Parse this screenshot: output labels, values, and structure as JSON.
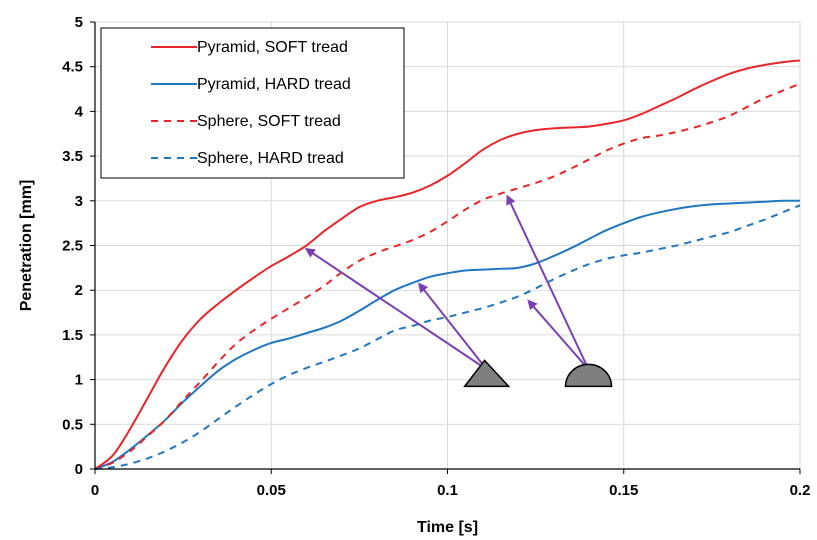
{
  "chart_data": {
    "type": "line",
    "title": "",
    "xlabel": "Time [s]",
    "ylabel": "Penetration [mm]",
    "xlim": [
      0,
      0.2
    ],
    "ylim": [
      0,
      5
    ],
    "xticks": [
      "0",
      "0.05",
      "0.1",
      "0.15",
      "0.2"
    ],
    "yticks": [
      "0",
      "0.5",
      "1",
      "1.5",
      "2",
      "2.5",
      "3",
      "3.5",
      "4",
      "4.5",
      "5"
    ],
    "grid": true,
    "legend_position": "top-left",
    "series": [
      {
        "name": "Pyramid, SOFT tread",
        "color": "#e8262a",
        "dash": "solid",
        "x": [
          0,
          0.005,
          0.01,
          0.015,
          0.02,
          0.025,
          0.03,
          0.035,
          0.04,
          0.045,
          0.05,
          0.055,
          0.06,
          0.065,
          0.07,
          0.075,
          0.08,
          0.085,
          0.09,
          0.095,
          0.1,
          0.105,
          0.11,
          0.115,
          0.12,
          0.125,
          0.13,
          0.135,
          0.14,
          0.145,
          0.15,
          0.155,
          0.16,
          0.165,
          0.17,
          0.175,
          0.18,
          0.185,
          0.19,
          0.195,
          0.2
        ],
        "y": [
          0,
          0.15,
          0.45,
          0.8,
          1.15,
          1.45,
          1.68,
          1.85,
          2.0,
          2.14,
          2.27,
          2.38,
          2.5,
          2.66,
          2.8,
          2.93,
          3.0,
          3.04,
          3.09,
          3.17,
          3.28,
          3.42,
          3.57,
          3.68,
          3.75,
          3.79,
          3.81,
          3.82,
          3.83,
          3.86,
          3.9,
          3.97,
          4.06,
          4.15,
          4.25,
          4.34,
          4.42,
          4.48,
          4.52,
          4.55,
          4.57
        ]
      },
      {
        "name": "Pyramid, HARD tread",
        "color": "#1f77c2",
        "dash": "solid",
        "x": [
          0,
          0.005,
          0.01,
          0.015,
          0.02,
          0.025,
          0.03,
          0.035,
          0.04,
          0.045,
          0.05,
          0.055,
          0.06,
          0.065,
          0.07,
          0.075,
          0.08,
          0.085,
          0.09,
          0.095,
          0.1,
          0.105,
          0.11,
          0.115,
          0.12,
          0.125,
          0.13,
          0.135,
          0.14,
          0.145,
          0.15,
          0.155,
          0.16,
          0.165,
          0.17,
          0.175,
          0.18,
          0.185,
          0.19,
          0.195,
          0.2
        ],
        "y": [
          0,
          0.08,
          0.22,
          0.38,
          0.55,
          0.75,
          0.93,
          1.1,
          1.23,
          1.33,
          1.41,
          1.46,
          1.52,
          1.58,
          1.66,
          1.77,
          1.89,
          2.0,
          2.08,
          2.15,
          2.19,
          2.22,
          2.23,
          2.24,
          2.25,
          2.3,
          2.38,
          2.47,
          2.57,
          2.67,
          2.75,
          2.82,
          2.87,
          2.91,
          2.94,
          2.96,
          2.97,
          2.98,
          2.99,
          3.0,
          3.0
        ]
      },
      {
        "name": "Sphere, SOFT tread",
        "color": "#e8262a",
        "dash": "dashed",
        "x": [
          0,
          0.005,
          0.01,
          0.015,
          0.02,
          0.025,
          0.03,
          0.035,
          0.04,
          0.045,
          0.05,
          0.055,
          0.06,
          0.065,
          0.07,
          0.075,
          0.08,
          0.085,
          0.09,
          0.095,
          0.1,
          0.105,
          0.11,
          0.115,
          0.12,
          0.125,
          0.13,
          0.135,
          0.14,
          0.145,
          0.15,
          0.155,
          0.16,
          0.165,
          0.17,
          0.175,
          0.18,
          0.185,
          0.19,
          0.195,
          0.2
        ],
        "y": [
          0,
          0.07,
          0.2,
          0.37,
          0.55,
          0.77,
          0.98,
          1.2,
          1.4,
          1.55,
          1.68,
          1.8,
          1.92,
          2.05,
          2.2,
          2.33,
          2.42,
          2.49,
          2.56,
          2.65,
          2.77,
          2.9,
          3.01,
          3.08,
          3.14,
          3.2,
          3.27,
          3.36,
          3.46,
          3.56,
          3.64,
          3.7,
          3.73,
          3.77,
          3.82,
          3.88,
          3.95,
          4.05,
          4.15,
          4.23,
          4.31
        ]
      },
      {
        "name": "Sphere, HARD tread",
        "color": "#1f77c2",
        "dash": "dashed",
        "x": [
          0,
          0.005,
          0.01,
          0.015,
          0.02,
          0.025,
          0.03,
          0.035,
          0.04,
          0.045,
          0.05,
          0.055,
          0.06,
          0.065,
          0.07,
          0.075,
          0.08,
          0.085,
          0.09,
          0.095,
          0.1,
          0.105,
          0.11,
          0.115,
          0.12,
          0.125,
          0.13,
          0.135,
          0.14,
          0.145,
          0.15,
          0.155,
          0.16,
          0.165,
          0.17,
          0.175,
          0.18,
          0.185,
          0.19,
          0.195,
          0.2
        ],
        "y": [
          0,
          0.02,
          0.06,
          0.12,
          0.2,
          0.3,
          0.42,
          0.56,
          0.7,
          0.83,
          0.95,
          1.05,
          1.13,
          1.2,
          1.27,
          1.35,
          1.45,
          1.55,
          1.6,
          1.66,
          1.7,
          1.75,
          1.8,
          1.86,
          1.93,
          2.02,
          2.12,
          2.21,
          2.29,
          2.35,
          2.39,
          2.42,
          2.46,
          2.5,
          2.55,
          2.6,
          2.65,
          2.72,
          2.79,
          2.87,
          2.95
        ]
      }
    ],
    "annotations": [
      {
        "name": "pyramid",
        "shape": "triangle",
        "fill": "#7f7f7f",
        "anchor": {
          "x": 0.1111,
          "y": 0.98
        },
        "arrows_to": [
          {
            "x": 0.06,
            "y": 2.46
          },
          {
            "x": 0.092,
            "y": 2.07
          }
        ],
        "arrow_color": "#7a3fb5"
      },
      {
        "name": "sphere",
        "shape": "semicircle",
        "fill": "#7f7f7f",
        "anchor": {
          "x": 0.14,
          "y": 0.98
        },
        "arrows_to": [
          {
            "x": 0.117,
            "y": 3.05
          },
          {
            "x": 0.123,
            "y": 1.88
          }
        ],
        "arrow_color": "#7a3fb5"
      }
    ]
  }
}
